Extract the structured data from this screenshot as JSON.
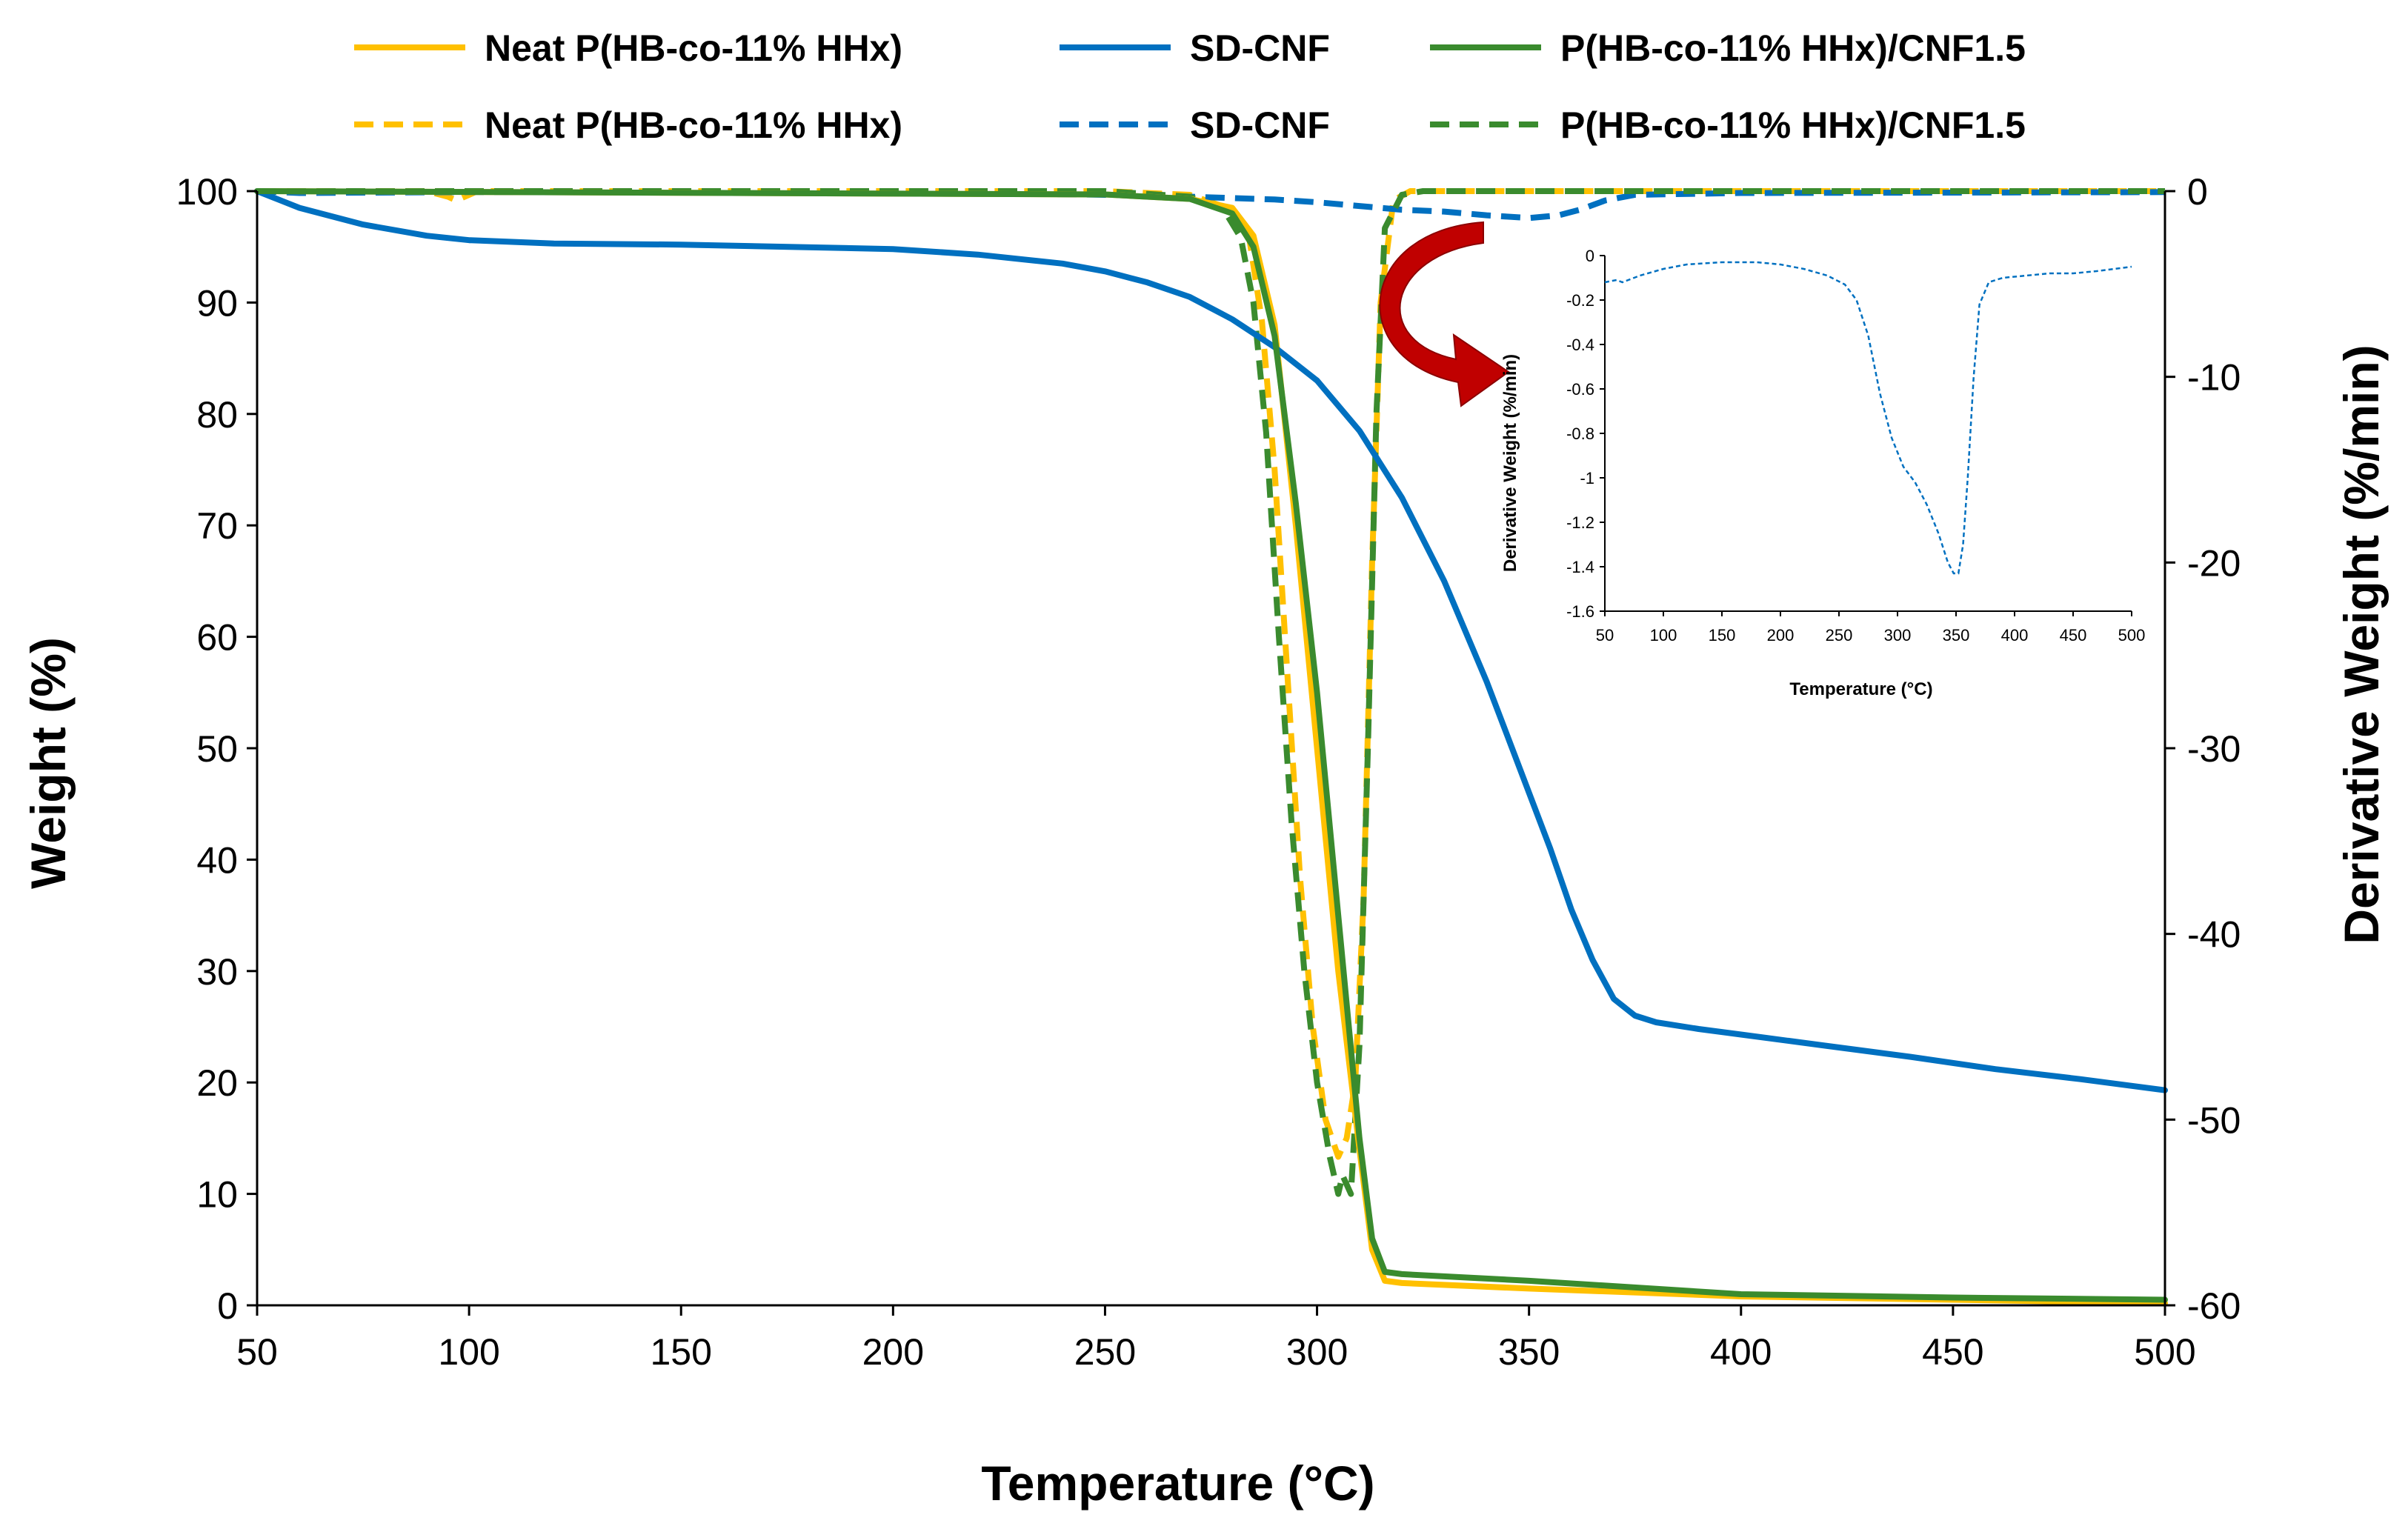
{
  "colors": {
    "neat": "#FFC000",
    "sdcnf": "#0070C0",
    "composite": "#3A8B2E",
    "arrow": "#C00000",
    "axis": "#000000"
  },
  "chart_data": [
    {
      "type": "line",
      "title": "",
      "xlabel": "Temperature (°C)",
      "ylabel": "Weight (%)",
      "y2label": "Derivative Weight (%/min)",
      "xlim": [
        50,
        500
      ],
      "ylim": [
        0,
        100
      ],
      "y2lim": [
        -60,
        0
      ],
      "x_ticks": [
        "50",
        "100",
        "150",
        "200",
        "250",
        "300",
        "350",
        "400",
        "450",
        "500"
      ],
      "y_ticks": [
        "0",
        "10",
        "20",
        "30",
        "40",
        "50",
        "60",
        "70",
        "80",
        "90",
        "100"
      ],
      "y2_ticks": [
        "0",
        "-10",
        "-20",
        "-30",
        "-40",
        "-50",
        "-60"
      ],
      "legend_position": "top",
      "legend": [
        {
          "name": "Neat P(HB-co-11% HHx)",
          "style": "solid",
          "color_key": "neat"
        },
        {
          "name": "SD-CNF",
          "style": "solid",
          "color_key": "sdcnf"
        },
        {
          "name": "P(HB-co-11% HHx)/CNF1.5",
          "style": "solid",
          "color_key": "composite"
        },
        {
          "name": "Neat P(HB-co-11% HHx)",
          "style": "dashed",
          "color_key": "neat"
        },
        {
          "name": "SD-CNF",
          "style": "dashed",
          "color_key": "sdcnf"
        },
        {
          "name": "P(HB-co-11% HHx)/CNF1.5",
          "style": "dashed",
          "color_key": "composite"
        }
      ],
      "series": [
        {
          "name": "Neat P(HB-co-11% HHx)",
          "style": "solid",
          "axis": "left",
          "color_key": "neat",
          "points": [
            [
              50,
              100
            ],
            [
              250,
              99.7
            ],
            [
              270,
              99.3
            ],
            [
              280,
              98.5
            ],
            [
              285,
              96
            ],
            [
              290,
              88
            ],
            [
              295,
              70
            ],
            [
              300,
              50
            ],
            [
              305,
              30
            ],
            [
              310,
              14
            ],
            [
              313,
              5
            ],
            [
              316,
              2.2
            ],
            [
              320,
              2
            ],
            [
              350,
              1.5
            ],
            [
              400,
              0.8
            ],
            [
              450,
              0.5
            ],
            [
              500,
              0.2
            ]
          ]
        },
        {
          "name": "SD-CNF",
          "style": "solid",
          "axis": "left",
          "color_key": "sdcnf",
          "points": [
            [
              50,
              100
            ],
            [
              60,
              98.5
            ],
            [
              75,
              97
            ],
            [
              90,
              96
            ],
            [
              100,
              95.6
            ],
            [
              120,
              95.3
            ],
            [
              150,
              95.2
            ],
            [
              200,
              94.8
            ],
            [
              220,
              94.3
            ],
            [
              240,
              93.5
            ],
            [
              250,
              92.8
            ],
            [
              260,
              91.8
            ],
            [
              270,
              90.5
            ],
            [
              280,
              88.5
            ],
            [
              290,
              86
            ],
            [
              300,
              83
            ],
            [
              310,
              78.5
            ],
            [
              320,
              72.5
            ],
            [
              330,
              65
            ],
            [
              340,
              56
            ],
            [
              345,
              51
            ],
            [
              350,
              46
            ],
            [
              355,
              41
            ],
            [
              360,
              35.5
            ],
            [
              365,
              31
            ],
            [
              370,
              27.5
            ],
            [
              375,
              26
            ],
            [
              380,
              25.4
            ],
            [
              390,
              24.8
            ],
            [
              400,
              24.3
            ],
            [
              420,
              23.3
            ],
            [
              440,
              22.3
            ],
            [
              460,
              21.2
            ],
            [
              480,
              20.3
            ],
            [
              500,
              19.3
            ]
          ]
        },
        {
          "name": "P(HB-co-11% HHx)/CNF1.5",
          "style": "solid",
          "axis": "left",
          "color_key": "composite",
          "points": [
            [
              50,
              100
            ],
            [
              250,
              99.7
            ],
            [
              270,
              99.3
            ],
            [
              280,
              98
            ],
            [
              285,
              95
            ],
            [
              290,
              87
            ],
            [
              295,
              72
            ],
            [
              300,
              55
            ],
            [
              305,
              35
            ],
            [
              310,
              15
            ],
            [
              313,
              6
            ],
            [
              316,
              3
            ],
            [
              320,
              2.8
            ],
            [
              350,
              2.2
            ],
            [
              400,
              1
            ],
            [
              450,
              0.7
            ],
            [
              500,
              0.5
            ]
          ]
        },
        {
          "name": "Neat P(HB-co-11% HHx)",
          "style": "dashed",
          "axis": "right",
          "color_key": "neat",
          "points": [
            [
              50,
              0
            ],
            [
              90,
              0
            ],
            [
              95,
              -0.3
            ],
            [
              97,
              -0.5
            ],
            [
              99,
              -0.3
            ],
            [
              102,
              0
            ],
            [
              250,
              0
            ],
            [
              270,
              -0.2
            ],
            [
              280,
              -1
            ],
            [
              284,
              -2.5
            ],
            [
              287,
              -7
            ],
            [
              290,
              -15
            ],
            [
              293,
              -26
            ],
            [
              296,
              -37
            ],
            [
              299,
              -45
            ],
            [
              302,
              -50
            ],
            [
              305,
              -52
            ],
            [
              307,
              -51
            ],
            [
              309,
              -48
            ],
            [
              311,
              -38
            ],
            [
              313,
              -20
            ],
            [
              315,
              -6
            ],
            [
              318,
              -0.5
            ],
            [
              322,
              0
            ],
            [
              500,
              0
            ]
          ]
        },
        {
          "name": "SD-CNF",
          "style": "dashed",
          "axis": "right",
          "color_key": "sdcnf",
          "points": [
            [
              50,
              0
            ],
            [
              60,
              -0.1
            ],
            [
              100,
              -0.05
            ],
            [
              150,
              -0.03
            ],
            [
              200,
              -0.05
            ],
            [
              250,
              -0.2
            ],
            [
              270,
              -0.3
            ],
            [
              290,
              -0.45
            ],
            [
              300,
              -0.6
            ],
            [
              310,
              -0.8
            ],
            [
              320,
              -1.0
            ],
            [
              330,
              -1.1
            ],
            [
              340,
              -1.3
            ],
            [
              350,
              -1.45
            ],
            [
              357,
              -1.3
            ],
            [
              362,
              -1.0
            ],
            [
              368,
              -0.5
            ],
            [
              375,
              -0.2
            ],
            [
              400,
              -0.1
            ],
            [
              450,
              -0.08
            ],
            [
              500,
              -0.05
            ]
          ]
        },
        {
          "name": "P(HB-co-11% HHx)/CNF1.5",
          "style": "dashed",
          "axis": "right",
          "color_key": "composite",
          "points": [
            [
              50,
              0
            ],
            [
              250,
              0
            ],
            [
              270,
              -0.3
            ],
            [
              278,
              -1
            ],
            [
              282,
              -2.5
            ],
            [
              285,
              -6
            ],
            [
              288,
              -13
            ],
            [
              291,
              -24
            ],
            [
              294,
              -34
            ],
            [
              297,
              -42
            ],
            [
              300,
              -48
            ],
            [
              303,
              -52
            ],
            [
              305,
              -54
            ],
            [
              306,
              -53
            ],
            [
              308,
              -54
            ],
            [
              310,
              -46
            ],
            [
              312,
              -30
            ],
            [
              314,
              -12
            ],
            [
              316,
              -2
            ],
            [
              320,
              -0.2
            ],
            [
              325,
              0
            ],
            [
              500,
              0
            ]
          ]
        }
      ]
    },
    {
      "type": "line",
      "title": "",
      "xlabel": "Temperature (°C)",
      "ylabel": "Derivative Weight (%/min)",
      "xlim": [
        50,
        500
      ],
      "ylim": [
        -1.6,
        0
      ],
      "x_ticks": [
        "50",
        "100",
        "150",
        "200",
        "250",
        "300",
        "350",
        "400",
        "450",
        "500"
      ],
      "y_ticks": [
        "0",
        "-0.2",
        "-0.4",
        "-0.6",
        "-0.8",
        "-1",
        "-1.2",
        "-1.4",
        "-1.6"
      ],
      "series": [
        {
          "name": "SD-CNF",
          "style": "dashed",
          "color_key": "sdcnf",
          "points": [
            [
              50,
              -0.12
            ],
            [
              60,
              -0.11
            ],
            [
              65,
              -0.12
            ],
            [
              70,
              -0.11
            ],
            [
              80,
              -0.09
            ],
            [
              100,
              -0.06
            ],
            [
              120,
              -0.04
            ],
            [
              150,
              -0.03
            ],
            [
              180,
              -0.03
            ],
            [
              200,
              -0.04
            ],
            [
              220,
              -0.06
            ],
            [
              240,
              -0.09
            ],
            [
              255,
              -0.13
            ],
            [
              265,
              -0.2
            ],
            [
              275,
              -0.36
            ],
            [
              285,
              -0.62
            ],
            [
              295,
              -0.82
            ],
            [
              305,
              -0.95
            ],
            [
              315,
              -1.02
            ],
            [
              325,
              -1.12
            ],
            [
              335,
              -1.25
            ],
            [
              343,
              -1.38
            ],
            [
              348,
              -1.43
            ],
            [
              352,
              -1.43
            ],
            [
              356,
              -1.3
            ],
            [
              360,
              -1.0
            ],
            [
              365,
              -0.55
            ],
            [
              370,
              -0.22
            ],
            [
              378,
              -0.12
            ],
            [
              390,
              -0.1
            ],
            [
              410,
              -0.09
            ],
            [
              430,
              -0.08
            ],
            [
              450,
              -0.08
            ],
            [
              470,
              -0.07
            ],
            [
              485,
              -0.06
            ],
            [
              500,
              -0.05
            ]
          ]
        }
      ]
    }
  ]
}
